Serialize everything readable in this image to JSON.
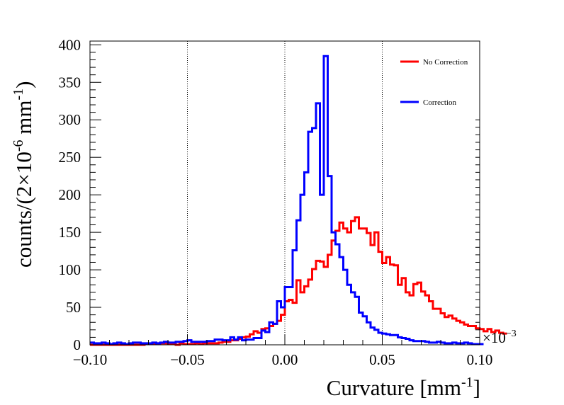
{
  "chart_data": {
    "type": "histogram",
    "xlabel": "Curvature [mm",
    "xlabel_sup": "-1",
    "xlabel_close": "]",
    "ylabel_prefix": "counts/(2×10",
    "ylabel_sup1": "-6",
    "ylabel_mid": " mm",
    "ylabel_sup2": "-1",
    "ylabel_close": ")",
    "x_multiplier_label": "×10",
    "x_multiplier_exp": "−3",
    "xlim": [
      -0.1,
      0.1
    ],
    "ylim": [
      0,
      405
    ],
    "x_ticks": [
      -0.1,
      -0.05,
      0.0,
      0.05,
      0.1
    ],
    "x_tick_labels": [
      "−0.10",
      "−0.05",
      "0.00",
      "0.05",
      "0.10"
    ],
    "y_ticks": [
      0,
      50,
      100,
      150,
      200,
      250,
      300,
      350,
      400
    ],
    "y_tick_labels": [
      "0",
      "50",
      "100",
      "150",
      "200",
      "250",
      "300",
      "350",
      "400"
    ],
    "vlines": [
      -0.05,
      0.0,
      0.05
    ],
    "bin_width": 0.002,
    "x_start": -0.1,
    "series": [
      {
        "name": "No Correction",
        "color": "#ff0000",
        "values": [
          0,
          0,
          0,
          0,
          0,
          0,
          0,
          0,
          0,
          0,
          0,
          0,
          0,
          0,
          1,
          1,
          1,
          2,
          2,
          2,
          1,
          1,
          0,
          2,
          1,
          1,
          1,
          2,
          1,
          2,
          2,
          2,
          2,
          3,
          4,
          4,
          6,
          6,
          8,
          10,
          11,
          14,
          18,
          16,
          21,
          22,
          25,
          28,
          32,
          40,
          58,
          60,
          56,
          86,
          70,
          78,
          87,
          101,
          112,
          111,
          104,
          120,
          139,
          152,
          163,
          155,
          150,
          165,
          170,
          155,
          155,
          149,
          133,
          150,
          124,
          109,
          117,
          107,
          106,
          80,
          89,
          70,
          66,
          81,
          83,
          71,
          66,
          58,
          48,
          48,
          42,
          37,
          39,
          35,
          32,
          30,
          27,
          25,
          25,
          22,
          21,
          18,
          21,
          17,
          19,
          16,
          15
        ]
      },
      {
        "name": "Correction",
        "color": "#0000ff",
        "values": [
          3,
          2,
          2,
          3,
          2,
          1,
          2,
          3,
          2,
          1,
          2,
          3,
          3,
          2,
          2,
          2,
          3,
          2,
          3,
          4,
          3,
          3,
          4,
          4,
          5,
          6,
          4,
          4,
          4,
          4,
          5,
          5,
          7,
          7,
          6,
          6,
          10,
          7,
          10,
          6,
          7,
          7,
          9,
          9,
          19,
          17,
          30,
          28,
          58,
          50,
          77,
          77,
          126,
          166,
          200,
          230,
          284,
          289,
          322,
          200,
          385,
          225,
          150,
          134,
          117,
          100,
          80,
          70,
          64,
          43,
          38,
          30,
          23,
          20,
          16,
          15,
          14,
          13,
          13,
          10,
          9,
          8,
          6,
          5,
          5,
          5,
          4,
          3,
          3,
          4,
          3,
          2,
          2,
          3,
          2,
          2,
          3,
          2,
          1,
          1,
          1
        ]
      }
    ]
  }
}
